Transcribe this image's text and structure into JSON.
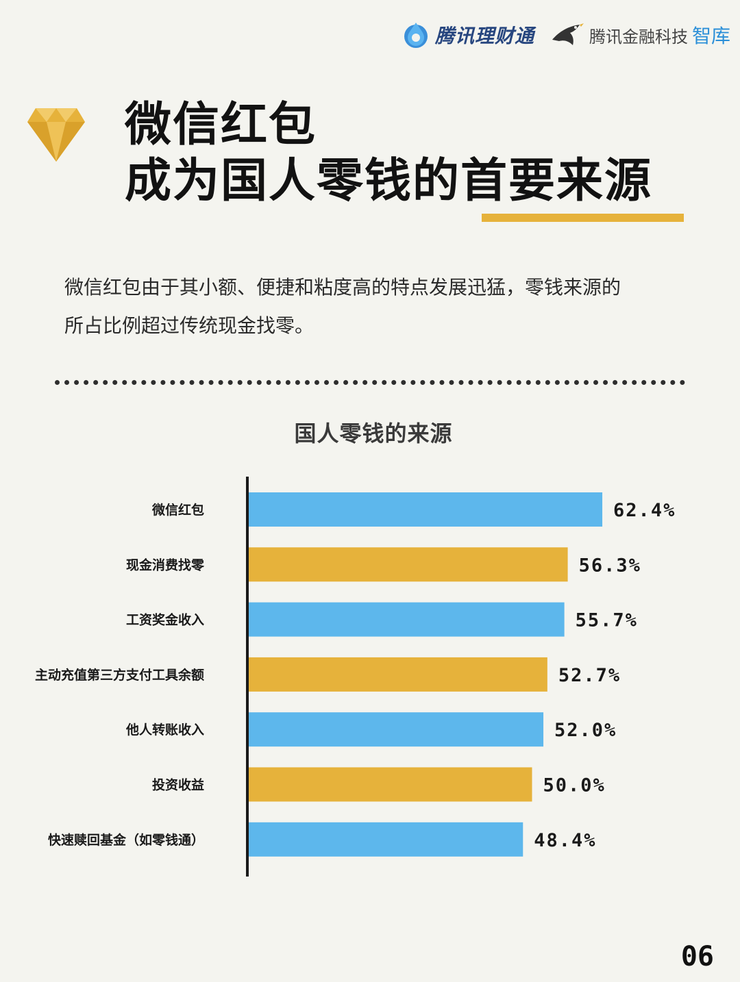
{
  "brand": {
    "logo_a": "腾讯理财通",
    "logo_b": "腾讯金融科技",
    "logo_b_accent": "智库"
  },
  "headline": {
    "line1": "微信红包",
    "line2": "成为国人零钱的首要来源"
  },
  "intro": {
    "line1": "微信红包由于其小额、便捷和粘度高的特点发展迅猛，零钱来源的",
    "line2": "所占比例超过传统现金找零。"
  },
  "colors": {
    "blue": "#5db7ec",
    "gold": "#e6b23b"
  },
  "page_number": "06",
  "chart_data": {
    "type": "bar",
    "orientation": "horizontal",
    "title": "国人零钱的来源",
    "categories": [
      "微信红包",
      "现金消费找零",
      "工资奖金收入",
      "主动充值第三方支付工具余额",
      "他人转账收入",
      "投资收益",
      "快速赎回基金（如零钱通）"
    ],
    "values": [
      62.4,
      56.3,
      55.7,
      52.7,
      52.0,
      50.0,
      48.4
    ],
    "value_labels": [
      "62.4%",
      "56.3%",
      "55.7%",
      "52.7%",
      "52.0%",
      "50.0%",
      "48.4%"
    ],
    "bar_colors": [
      "#5db7ec",
      "#e6b23b",
      "#5db7ec",
      "#e6b23b",
      "#5db7ec",
      "#e6b23b",
      "#5db7ec"
    ],
    "xlim": [
      0,
      100
    ],
    "grid": false,
    "legend": "none"
  }
}
